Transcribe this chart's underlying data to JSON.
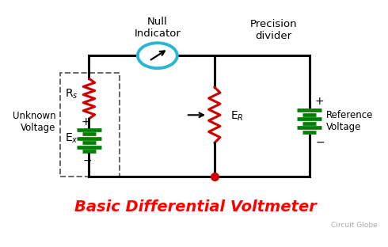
{
  "title": "Basic Differential Voltmeter",
  "title_color": "#ff0000",
  "title_fontsize": 14,
  "watermark": "Circuit Globe",
  "bg_color": "#ffffff",
  "line_color": "#000000",
  "resistor_color": "#cc0000",
  "battery_color": "#008000",
  "indicator_color": "#29b6d4",
  "node_color": "#cc0000",
  "lw": 2.2,
  "xlim": [
    0,
    10
  ],
  "ylim": [
    0,
    10
  ]
}
